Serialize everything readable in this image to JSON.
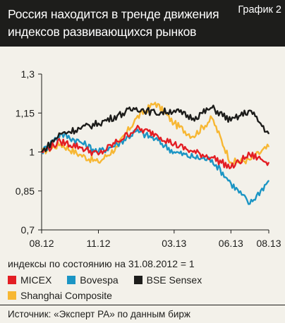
{
  "header": {
    "title": "Россия находится в тренде движения индексов развивающихся рынков",
    "badge": "График 2"
  },
  "colors": {
    "MICEX": "#e31e24",
    "Bovespa": "#1b95c4",
    "BSE Sensex": "#1d1d1b",
    "Shanghai Composite": "#f7b733"
  },
  "note": "индексы по состоянию на 31.08.2012 = 1",
  "legend": [
    {
      "name": "MICEX"
    },
    {
      "name": "Bovespa"
    },
    {
      "name": "BSE Sensex"
    },
    {
      "name": "Shanghai Composite"
    }
  ],
  "source": "Источник: «Эксперт РА» по данным бирж",
  "chart_data": {
    "type": "line",
    "x": [
      "08.12",
      "09.12",
      "10.12",
      "11.12",
      "12.12",
      "01.13",
      "02.13",
      "03.13",
      "04.13",
      "05.13",
      "06.13",
      "07.13",
      "08.13"
    ],
    "x_tick_labels": [
      "08.12",
      "11.12",
      "03.13",
      "06.13",
      "08.13"
    ],
    "y_tick_labels": [
      "1,3",
      "1,15",
      "1",
      "0,85",
      "0,7"
    ],
    "ylim": [
      0.7,
      1.3
    ],
    "grid": false,
    "legend_position": "bottom",
    "series": [
      {
        "name": "MICEX",
        "values": [
          1.0,
          1.04,
          1.02,
          0.99,
          1.04,
          1.09,
          1.07,
          1.03,
          1.0,
          0.98,
          0.94,
          0.99,
          0.96
        ]
      },
      {
        "name": "Bovespa",
        "values": [
          1.0,
          1.07,
          1.04,
          1.0,
          1.03,
          1.08,
          1.05,
          1.0,
          0.98,
          0.97,
          0.88,
          0.8,
          0.89
        ]
      },
      {
        "name": "BSE Sensex",
        "values": [
          1.0,
          1.07,
          1.09,
          1.11,
          1.14,
          1.17,
          1.15,
          1.16,
          1.13,
          1.17,
          1.12,
          1.16,
          1.07
        ]
      },
      {
        "name": "Shanghai Composite",
        "values": [
          1.0,
          1.03,
          0.99,
          0.96,
          1.02,
          1.13,
          1.19,
          1.11,
          1.06,
          1.13,
          0.96,
          0.97,
          1.02
        ]
      }
    ]
  }
}
